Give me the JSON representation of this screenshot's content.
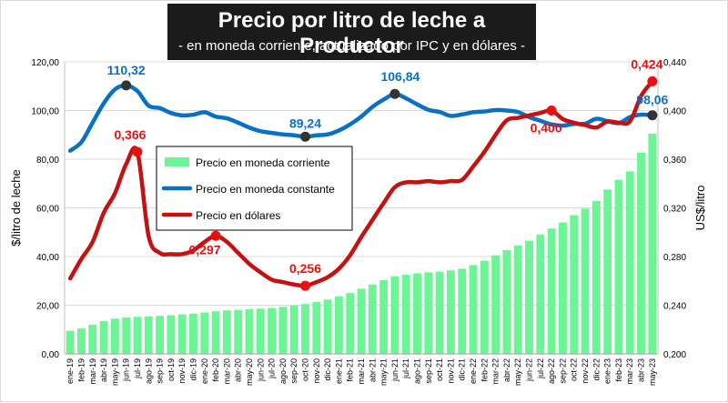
{
  "title": "Precio por litro de leche a Productor",
  "subtitle": "- en moneda corriente, actualizado por IPC y en dólares -",
  "colors": {
    "corriente": "#6cf594",
    "constante": "#0a70c4",
    "dolares": "#c41212",
    "marker_dark": "#333333",
    "marker_red": "#e81010"
  },
  "chart_data": {
    "type": "bar+line",
    "categories": [
      "ene-19",
      "feb-19",
      "mar-19",
      "abr-19",
      "may-19",
      "jun-19",
      "jul-19",
      "ago-19",
      "sep-19",
      "oct-19",
      "nov-19",
      "dic-19",
      "ene-20",
      "feb-20",
      "mar-20",
      "abr-20",
      "may-20",
      "jun-20",
      "jul-20",
      "ago-20",
      "sep-20",
      "oct-20",
      "nov-20",
      "dic-20",
      "ene-21",
      "feb-21",
      "mar-21",
      "abr-21",
      "may-21",
      "jun-21",
      "jul-21",
      "ago-21",
      "sep-21",
      "oct-21",
      "nov-21",
      "dic-21",
      "ene-22",
      "feb-22",
      "mar-22",
      "abr-22",
      "may-22",
      "jun-22",
      "jul-22",
      "ago-22",
      "sep-22",
      "oct-22",
      "nov-22",
      "dic-22",
      "ene-23",
      "feb-23",
      "mar-23",
      "abr-23",
      "may-23"
    ],
    "tick_labels": [
      "ene-19",
      "feb-19",
      "mar-19",
      "abr-19",
      "may-19",
      "jun-19",
      "jul-19",
      "ago-19",
      "sep-19",
      "oct-19",
      "nov-19",
      "dic-19",
      "ene-20",
      "feb-20",
      "mar-20",
      "abr-20",
      "may-20",
      "jun-20",
      "jul-20",
      "ago-20",
      "sep-20",
      "oct-20",
      "nov-20",
      "dic-20",
      "ene-21",
      "feb-21",
      "mar-21",
      "abr-21",
      "may-21",
      "jun-21",
      "jul-21",
      "ago-21",
      "sep-21",
      "oct-21",
      "nov-21",
      "dic-21",
      "ene-22",
      "feb-22",
      "mar-22",
      "abr-22",
      "may-22",
      "jun-22",
      "jul-22",
      "ago-22",
      "sep-22",
      "oct-22",
      "nov-22",
      "dic-22",
      "ene-23",
      "feb-23",
      "mar-23",
      "abr-23",
      "may-23"
    ],
    "series": [
      {
        "name": "Precio en moneda corriente",
        "type": "bar",
        "axis": "left",
        "values": [
          9.5,
          10.5,
          12,
          13.5,
          14.5,
          15,
          15.2,
          15.4,
          15.6,
          15.9,
          16.2,
          16.5,
          17,
          17.5,
          17.9,
          18.1,
          18.3,
          18.6,
          18.9,
          19.3,
          19.8,
          20.5,
          21.3,
          22.3,
          23.6,
          25,
          26.8,
          28.5,
          30.3,
          31.9,
          32.5,
          33.1,
          33.5,
          33.8,
          34.3,
          35,
          36.5,
          38.3,
          40.5,
          42.6,
          44.5,
          46.5,
          49,
          51.5,
          54,
          57,
          59.7,
          62.8,
          67.5,
          71.5,
          75,
          82.7,
          90.5
        ]
      },
      {
        "name": "Precio en moneda constante",
        "type": "line",
        "axis": "left",
        "values": [
          83.5,
          87,
          95,
          103,
          108.7,
          110.32,
          108,
          102,
          101,
          99,
          98,
          98.3,
          99.3,
          97.5,
          96.8,
          95,
          93,
          91.5,
          90.8,
          90.2,
          89.8,
          89.24,
          89.8,
          90.2,
          91.8,
          94.3,
          97.5,
          101.5,
          104.5,
          106.84,
          105,
          102.5,
          100.3,
          99.4,
          97.8,
          98.4,
          99.3,
          99.6,
          100.2,
          100,
          99.4,
          97.3,
          95.8,
          94.3,
          93.8,
          94.5,
          94.6,
          96.6,
          95.6,
          94.8,
          97.3,
          98.3,
          98.06
        ]
      },
      {
        "name": "Precio en dólares",
        "type": "line",
        "axis": "right",
        "values": [
          0.262,
          0.278,
          0.292,
          0.316,
          0.332,
          0.356,
          0.366,
          0.297,
          0.283,
          0.282,
          0.282,
          0.285,
          0.292,
          0.297,
          0.292,
          0.283,
          0.274,
          0.267,
          0.261,
          0.259,
          0.257,
          0.256,
          0.259,
          0.263,
          0.27,
          0.281,
          0.296,
          0.31,
          0.324,
          0.337,
          0.341,
          0.341,
          0.342,
          0.341,
          0.342,
          0.343,
          0.354,
          0.366,
          0.38,
          0.392,
          0.394,
          0.396,
          0.398,
          0.4,
          0.393,
          0.39,
          0.388,
          0.386,
          0.391,
          0.39,
          0.391,
          0.412,
          0.424
        ]
      }
    ],
    "annotations": [
      {
        "series": 1,
        "index": 5,
        "text": "110,32",
        "color": "#0a70c4",
        "marker": "#333333"
      },
      {
        "series": 1,
        "index": 21,
        "text": "89,24",
        "color": "#0a70c4",
        "marker": "#333333"
      },
      {
        "series": 1,
        "index": 29,
        "text": "106,84",
        "color": "#0a70c4",
        "marker": "#333333"
      },
      {
        "series": 1,
        "index": 52,
        "text": "98,06",
        "color": "#0a70c4",
        "marker": "#333333"
      },
      {
        "series": 2,
        "index": 6,
        "text": "0,366",
        "color": "#e81010",
        "marker": "#e81010"
      },
      {
        "series": 2,
        "index": 13,
        "text": "0,297",
        "color": "#e81010",
        "marker": "#e81010"
      },
      {
        "series": 2,
        "index": 21,
        "text": "0,256",
        "color": "#e81010",
        "marker": "#e81010"
      },
      {
        "series": 2,
        "index": 43,
        "text": "0,400",
        "color": "#e81010",
        "marker": "#e81010"
      },
      {
        "series": 2,
        "index": 52,
        "text": "0,424",
        "color": "#e81010",
        "marker": "#e81010"
      }
    ],
    "y_left": {
      "label": "$/litro de leche",
      "min": 0,
      "max": 120,
      "ticks": [
        "0,00",
        "20,00",
        "40,00",
        "60,00",
        "80,00",
        "100,00",
        "120,00"
      ]
    },
    "y_right": {
      "label": "US$/litro",
      "min": 0.2,
      "max": 0.44,
      "ticks": [
        "0,200",
        "0,240",
        "0,280",
        "0,320",
        "0,360",
        "0,400",
        "0,440"
      ]
    },
    "grid": true,
    "legend": {
      "position": "center-left",
      "entries": [
        "Precio en moneda corriente",
        "Precio en moneda constante",
        "Precio en dólares"
      ]
    }
  }
}
